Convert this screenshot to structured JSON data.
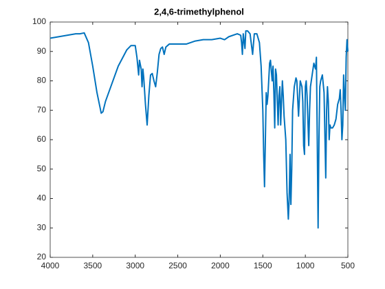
{
  "chart_data": {
    "type": "line",
    "title": "2,4,6-trimethylphenol",
    "x": [
      4000,
      3900,
      3800,
      3700,
      3650,
      3600,
      3550,
      3500,
      3450,
      3400,
      3380,
      3350,
      3300,
      3200,
      3100,
      3050,
      3000,
      2980,
      2960,
      2950,
      2930,
      2920,
      2910,
      2900,
      2880,
      2860,
      2840,
      2820,
      2800,
      2780,
      2760,
      2740,
      2720,
      2700,
      2680,
      2660,
      2640,
      2600,
      2500,
      2400,
      2300,
      2200,
      2100,
      2000,
      1950,
      1900,
      1800,
      1760,
      1750,
      1740,
      1730,
      1710,
      1700,
      1680,
      1650,
      1620,
      1600,
      1570,
      1540,
      1520,
      1500,
      1490,
      1480,
      1470,
      1460,
      1450,
      1440,
      1420,
      1410,
      1390,
      1380,
      1370,
      1360,
      1350,
      1340,
      1320,
      1310,
      1300,
      1290,
      1280,
      1270,
      1260,
      1250,
      1230,
      1215,
      1200,
      1190,
      1180,
      1170,
      1160,
      1150,
      1130,
      1110,
      1100,
      1080,
      1070,
      1060,
      1040,
      1030,
      1020,
      1010,
      1000,
      990,
      980,
      960,
      950,
      940,
      920,
      900,
      880,
      870,
      860,
      850,
      840,
      830,
      820,
      800,
      780,
      760,
      750,
      740,
      730,
      720,
      710,
      700,
      680,
      660,
      640,
      620,
      600,
      590,
      580,
      570,
      560,
      550,
      540,
      530,
      520,
      510,
      500
    ],
    "series": [
      {
        "name": "2,4,6-trimethylphenol",
        "color": "#0072bd",
        "values": [
          94.5,
          95,
          95.5,
          96,
          96,
          96.3,
          93,
          85,
          76,
          69,
          69.5,
          73,
          77,
          85,
          90.5,
          92,
          92,
          88,
          82,
          87,
          84,
          78,
          84,
          81,
          72,
          65,
          75,
          82,
          82.5,
          80,
          78,
          83,
          89,
          91,
          91.5,
          89,
          91.5,
          92.5,
          92.5,
          92.5,
          93.5,
          94,
          94,
          94.5,
          94,
          95,
          96,
          95.5,
          93,
          89,
          96,
          91,
          97,
          97,
          96,
          89,
          96,
          96,
          93,
          85,
          70,
          55,
          44,
          60,
          76,
          72,
          75,
          86,
          87,
          80,
          85,
          76,
          64,
          84,
          82,
          65,
          75,
          78,
          65,
          73,
          80,
          75,
          68,
          60,
          42,
          33,
          40,
          55,
          38,
          50,
          70,
          78,
          81,
          80,
          68,
          74,
          80,
          78,
          73,
          58,
          55,
          78,
          80,
          75,
          58,
          70,
          78,
          82,
          86,
          84,
          88,
          60,
          30,
          60,
          78,
          80,
          82,
          76,
          47,
          70,
          78,
          73,
          60,
          65,
          64,
          64,
          65,
          67,
          72,
          74,
          77,
          70,
          60,
          65,
          82,
          75,
          70,
          88,
          94,
          90
        ]
      }
    ],
    "xlim": [
      4000,
      500
    ],
    "xticks": [
      4000,
      3500,
      3000,
      2500,
      2000,
      1500,
      1000,
      500
    ],
    "ylim": [
      20,
      100
    ],
    "yticks": [
      20,
      30,
      40,
      50,
      60,
      70,
      80,
      90,
      100
    ]
  }
}
